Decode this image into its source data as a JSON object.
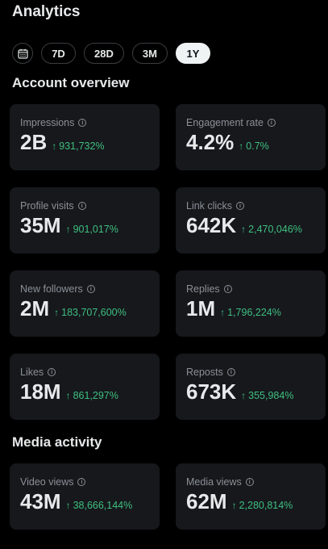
{
  "header": {
    "title": "Analytics"
  },
  "ranges": [
    {
      "label": "7D",
      "active": false
    },
    {
      "label": "28D",
      "active": false
    },
    {
      "label": "3M",
      "active": false
    },
    {
      "label": "1Y",
      "active": true
    }
  ],
  "sections": {
    "account_overview": "Account overview",
    "media_activity": "Media activity"
  },
  "account_cards": [
    {
      "label": "Impressions",
      "value": "2B",
      "delta": "931,732%"
    },
    {
      "label": "Engagement rate",
      "value": "4.2%",
      "delta": "0.7%"
    },
    {
      "label": "Profile visits",
      "value": "35M",
      "delta": "901,017%"
    },
    {
      "label": "Link clicks",
      "value": "642K",
      "delta": "2,470,046%"
    },
    {
      "label": "New followers",
      "value": "2M",
      "delta": "183,707,600%"
    },
    {
      "label": "Replies",
      "value": "1M",
      "delta": "1,796,224%"
    },
    {
      "label": "Likes",
      "value": "18M",
      "delta": "861,297%"
    },
    {
      "label": "Reposts",
      "value": "673K",
      "delta": "355,984%"
    }
  ],
  "media_cards": [
    {
      "label": "Video views",
      "value": "43M",
      "delta": "38,666,144%"
    },
    {
      "label": "Media views",
      "value": "62M",
      "delta": "2,280,814%"
    }
  ],
  "icons": {
    "calendar": "calendar-icon",
    "info": "info-icon",
    "trend": "arrow-up-icon"
  },
  "colors": {
    "background": "#000000",
    "card": "#16181c",
    "positive": "#3fbf80",
    "muted": "#8b9096"
  }
}
